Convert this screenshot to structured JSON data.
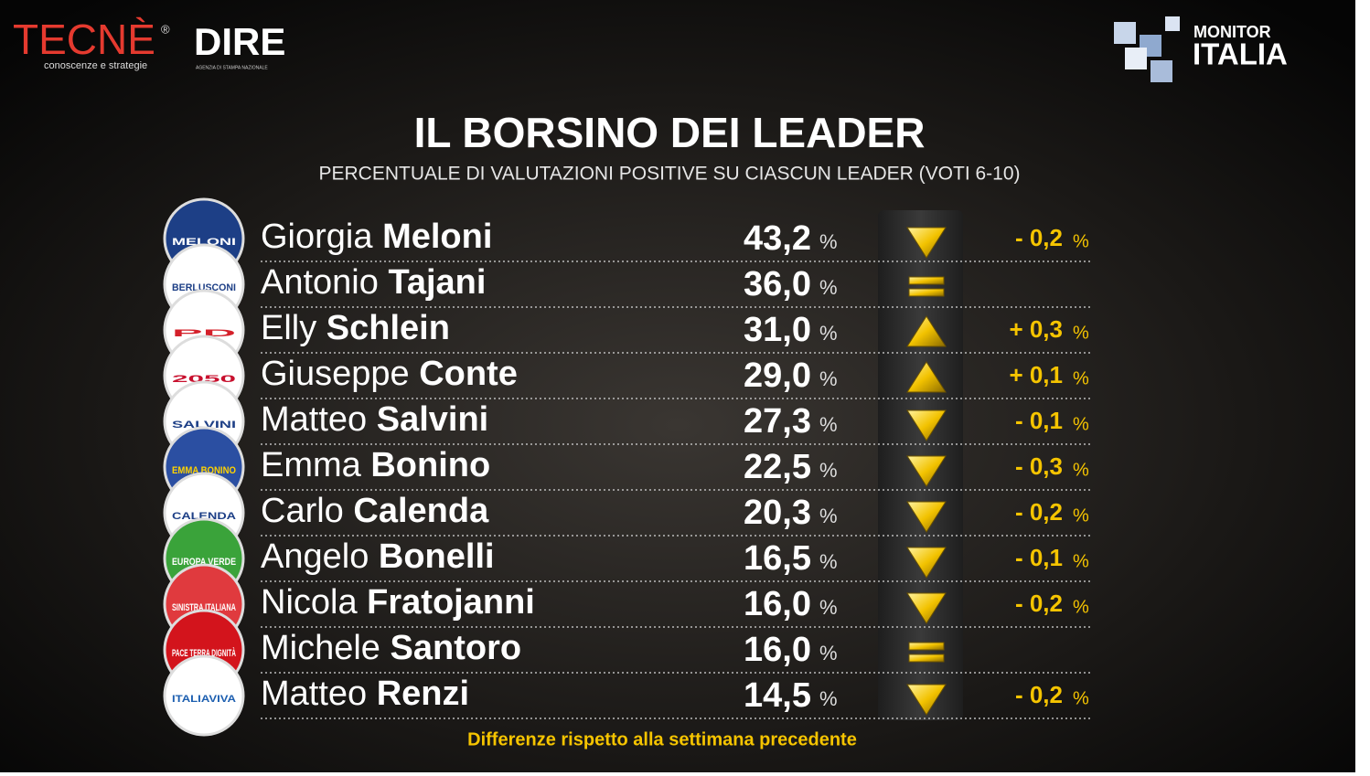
{
  "header": {
    "brand_left": "TECNÈ",
    "brand_left_mark": "®",
    "brand_left_tagline": "conoscenze e strategie",
    "brand_mid": "DIRE",
    "brand_mid_tagline": "AGENZIA DI STAMPA NAZIONALE",
    "brand_right_top": "MONITOR",
    "brand_right_bottom": "ITALIA"
  },
  "title": "IL BORSINO DEI LEADER",
  "subtitle": "PERCENTUALE DI VALUTAZIONI POSITIVE SU CIASCUN LEADER (VOTI 6-10)",
  "unit": "%",
  "rows": [
    {
      "logo": "MELONI",
      "logo_color": "#1d3f86",
      "logo_text_color": "#ffffff",
      "first": "Giorgia",
      "last": "Meloni",
      "value": "43,2",
      "trend": "down",
      "change": "- 0,2"
    },
    {
      "logo": "BERLUSCONI",
      "logo_color": "#ffffff",
      "logo_text_color": "#1d3f86",
      "first": "Antonio",
      "last": "Tajani",
      "value": "36,0",
      "trend": "same",
      "change": null
    },
    {
      "logo": "PD",
      "logo_color": "#ffffff",
      "logo_text_color": "#d4202a",
      "first": "Elly",
      "last": "Schlein",
      "value": "31,0",
      "trend": "up",
      "change": "+ 0,3"
    },
    {
      "logo": "2050",
      "logo_color": "#ffffff",
      "logo_text_color": "#c8102e",
      "first": "Giuseppe",
      "last": "Conte",
      "value": "29,0",
      "trend": "up",
      "change": "+ 0,1"
    },
    {
      "logo": "SALVINI",
      "logo_color": "#ffffff",
      "logo_text_color": "#1d3f86",
      "first": "Matteo",
      "last": "Salvini",
      "value": "27,3",
      "trend": "down",
      "change": "- 0,1"
    },
    {
      "logo": "EMMA BONINO",
      "logo_color": "#2b4fa2",
      "logo_text_color": "#ffd200",
      "first": "Emma",
      "last": "Bonino",
      "value": "22,5",
      "trend": "down",
      "change": "- 0,3"
    },
    {
      "logo": "CALENDA",
      "logo_color": "#ffffff",
      "logo_text_color": "#1d3f86",
      "first": "Carlo",
      "last": "Calenda",
      "value": "20,3",
      "trend": "down",
      "change": "- 0,2"
    },
    {
      "logo": "EUROPA VERDE",
      "logo_color": "#3aa33a",
      "logo_text_color": "#ffffff",
      "first": "Angelo",
      "last": "Bonelli",
      "value": "16,5",
      "trend": "down",
      "change": "- 0,1"
    },
    {
      "logo": "SINISTRA ITALIANA",
      "logo_color": "#e03a3e",
      "logo_text_color": "#ffffff",
      "first": "Nicola",
      "last": "Fratojanni",
      "value": "16,0",
      "trend": "down",
      "change": "- 0,2"
    },
    {
      "logo": "PACE TERRA DIGNITÀ",
      "logo_color": "#d3141c",
      "logo_text_color": "#ffffff",
      "first": "Michele",
      "last": "Santoro",
      "value": "16,0",
      "trend": "same",
      "change": null
    },
    {
      "logo": "ITALIAVIVA",
      "logo_color": "#ffffff",
      "logo_text_color": "#1d5fb0",
      "first": "Matteo",
      "last": "Renzi",
      "value": "14,5",
      "trend": "down",
      "change": "- 0,2"
    }
  ],
  "footnote": "Differenze rispetto alla settimana precedente"
}
